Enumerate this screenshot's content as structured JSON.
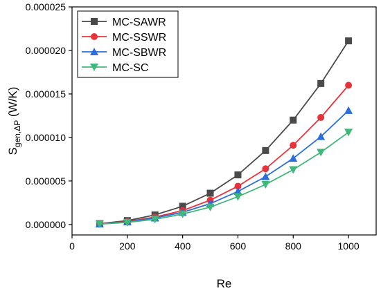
{
  "chart_data": {
    "type": "line",
    "xlabel": "Re",
    "ylabel": {
      "main": "S",
      "subscript": "gen,ΔP",
      "unit": " (W/K)"
    },
    "xlim": [
      0,
      1100
    ],
    "ylim": [
      -1.2e-06,
      2.5e-05
    ],
    "xticks": [
      0,
      200,
      400,
      600,
      800,
      1000
    ],
    "xtick_labels": [
      "0",
      "200",
      "400",
      "600",
      "800",
      "1000"
    ],
    "yticks": [
      0,
      5e-06,
      1e-05,
      1.5e-05,
      2e-05,
      2.5e-05
    ],
    "ytick_labels": [
      "0.000000",
      "0.000005",
      "0.000010",
      "0.000015",
      "0.000020",
      "0.000025"
    ],
    "legend_position": "top-left",
    "x": [
      100,
      200,
      300,
      400,
      500,
      600,
      700,
      800,
      900,
      1000
    ],
    "series": [
      {
        "name": "MC-SAWR",
        "color": "#4a4a4a",
        "marker": "square",
        "values": [
          1e-07,
          4.5e-07,
          1.1e-06,
          2.1e-06,
          3.6e-06,
          5.7e-06,
          8.5e-06,
          1.2e-05,
          1.62e-05,
          2.11e-05
        ]
      },
      {
        "name": "MC-SSWR",
        "color": "#e8323a",
        "marker": "circle",
        "values": [
          8e-08,
          3.5e-07,
          8.5e-07,
          1.6e-06,
          2.8e-06,
          4.4e-06,
          6.4e-06,
          9.1e-06,
          1.23e-05,
          1.6e-05
        ]
      },
      {
        "name": "MC-SBWR",
        "color": "#2a6edb",
        "marker": "triangle-up",
        "values": [
          6e-08,
          3e-07,
          7.5e-07,
          1.4e-06,
          2.4e-06,
          3.8e-06,
          5.5e-06,
          7.6e-06,
          1.01e-05,
          1.31e-05
        ]
      },
      {
        "name": "MC-SC",
        "color": "#3fb87a",
        "marker": "triangle-down",
        "values": [
          5e-08,
          2.4e-07,
          6e-07,
          1.2e-06,
          2e-06,
          3.2e-06,
          4.6e-06,
          6.3e-06,
          8.3e-06,
          1.06e-05
        ]
      }
    ]
  }
}
